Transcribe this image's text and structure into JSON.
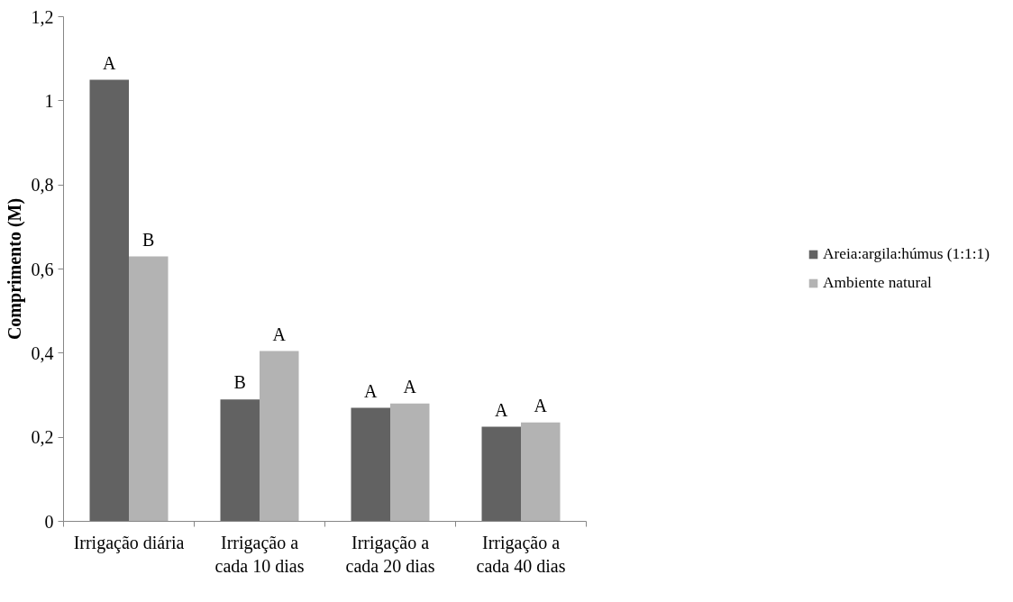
{
  "chart_data": {
    "type": "bar",
    "ylabel": "Comprimento (M)",
    "categories": [
      "Irrigação diária",
      "Irrigação a\ncada 10 dias",
      "Irrigação a\ncada 20 dias",
      "Irrigação a\ncada 40 dias"
    ],
    "series": [
      {
        "name": "Areia:argila:húmus (1:1:1)",
        "color": "#626262",
        "values": [
          1.05,
          0.29,
          0.27,
          0.225
        ],
        "value_labels": [
          "A",
          "B",
          "A",
          "A"
        ]
      },
      {
        "name": "Ambiente natural",
        "color": "#b3b3b3",
        "values": [
          0.63,
          0.405,
          0.28,
          0.235
        ],
        "value_labels": [
          "B",
          "A",
          "A",
          "A"
        ]
      }
    ],
    "ylim": [
      0,
      1.2
    ],
    "yticks": [
      0,
      {
        "value": 0.2,
        "label": "0,2"
      },
      {
        "value": 0.4,
        "label": "0,4"
      },
      {
        "value": 0.6,
        "label": "0,6"
      },
      {
        "value": 0.8,
        "label": "0,8"
      },
      1,
      {
        "value": 1.2,
        "label": "1,2"
      }
    ],
    "grid": false,
    "legend": "right"
  }
}
